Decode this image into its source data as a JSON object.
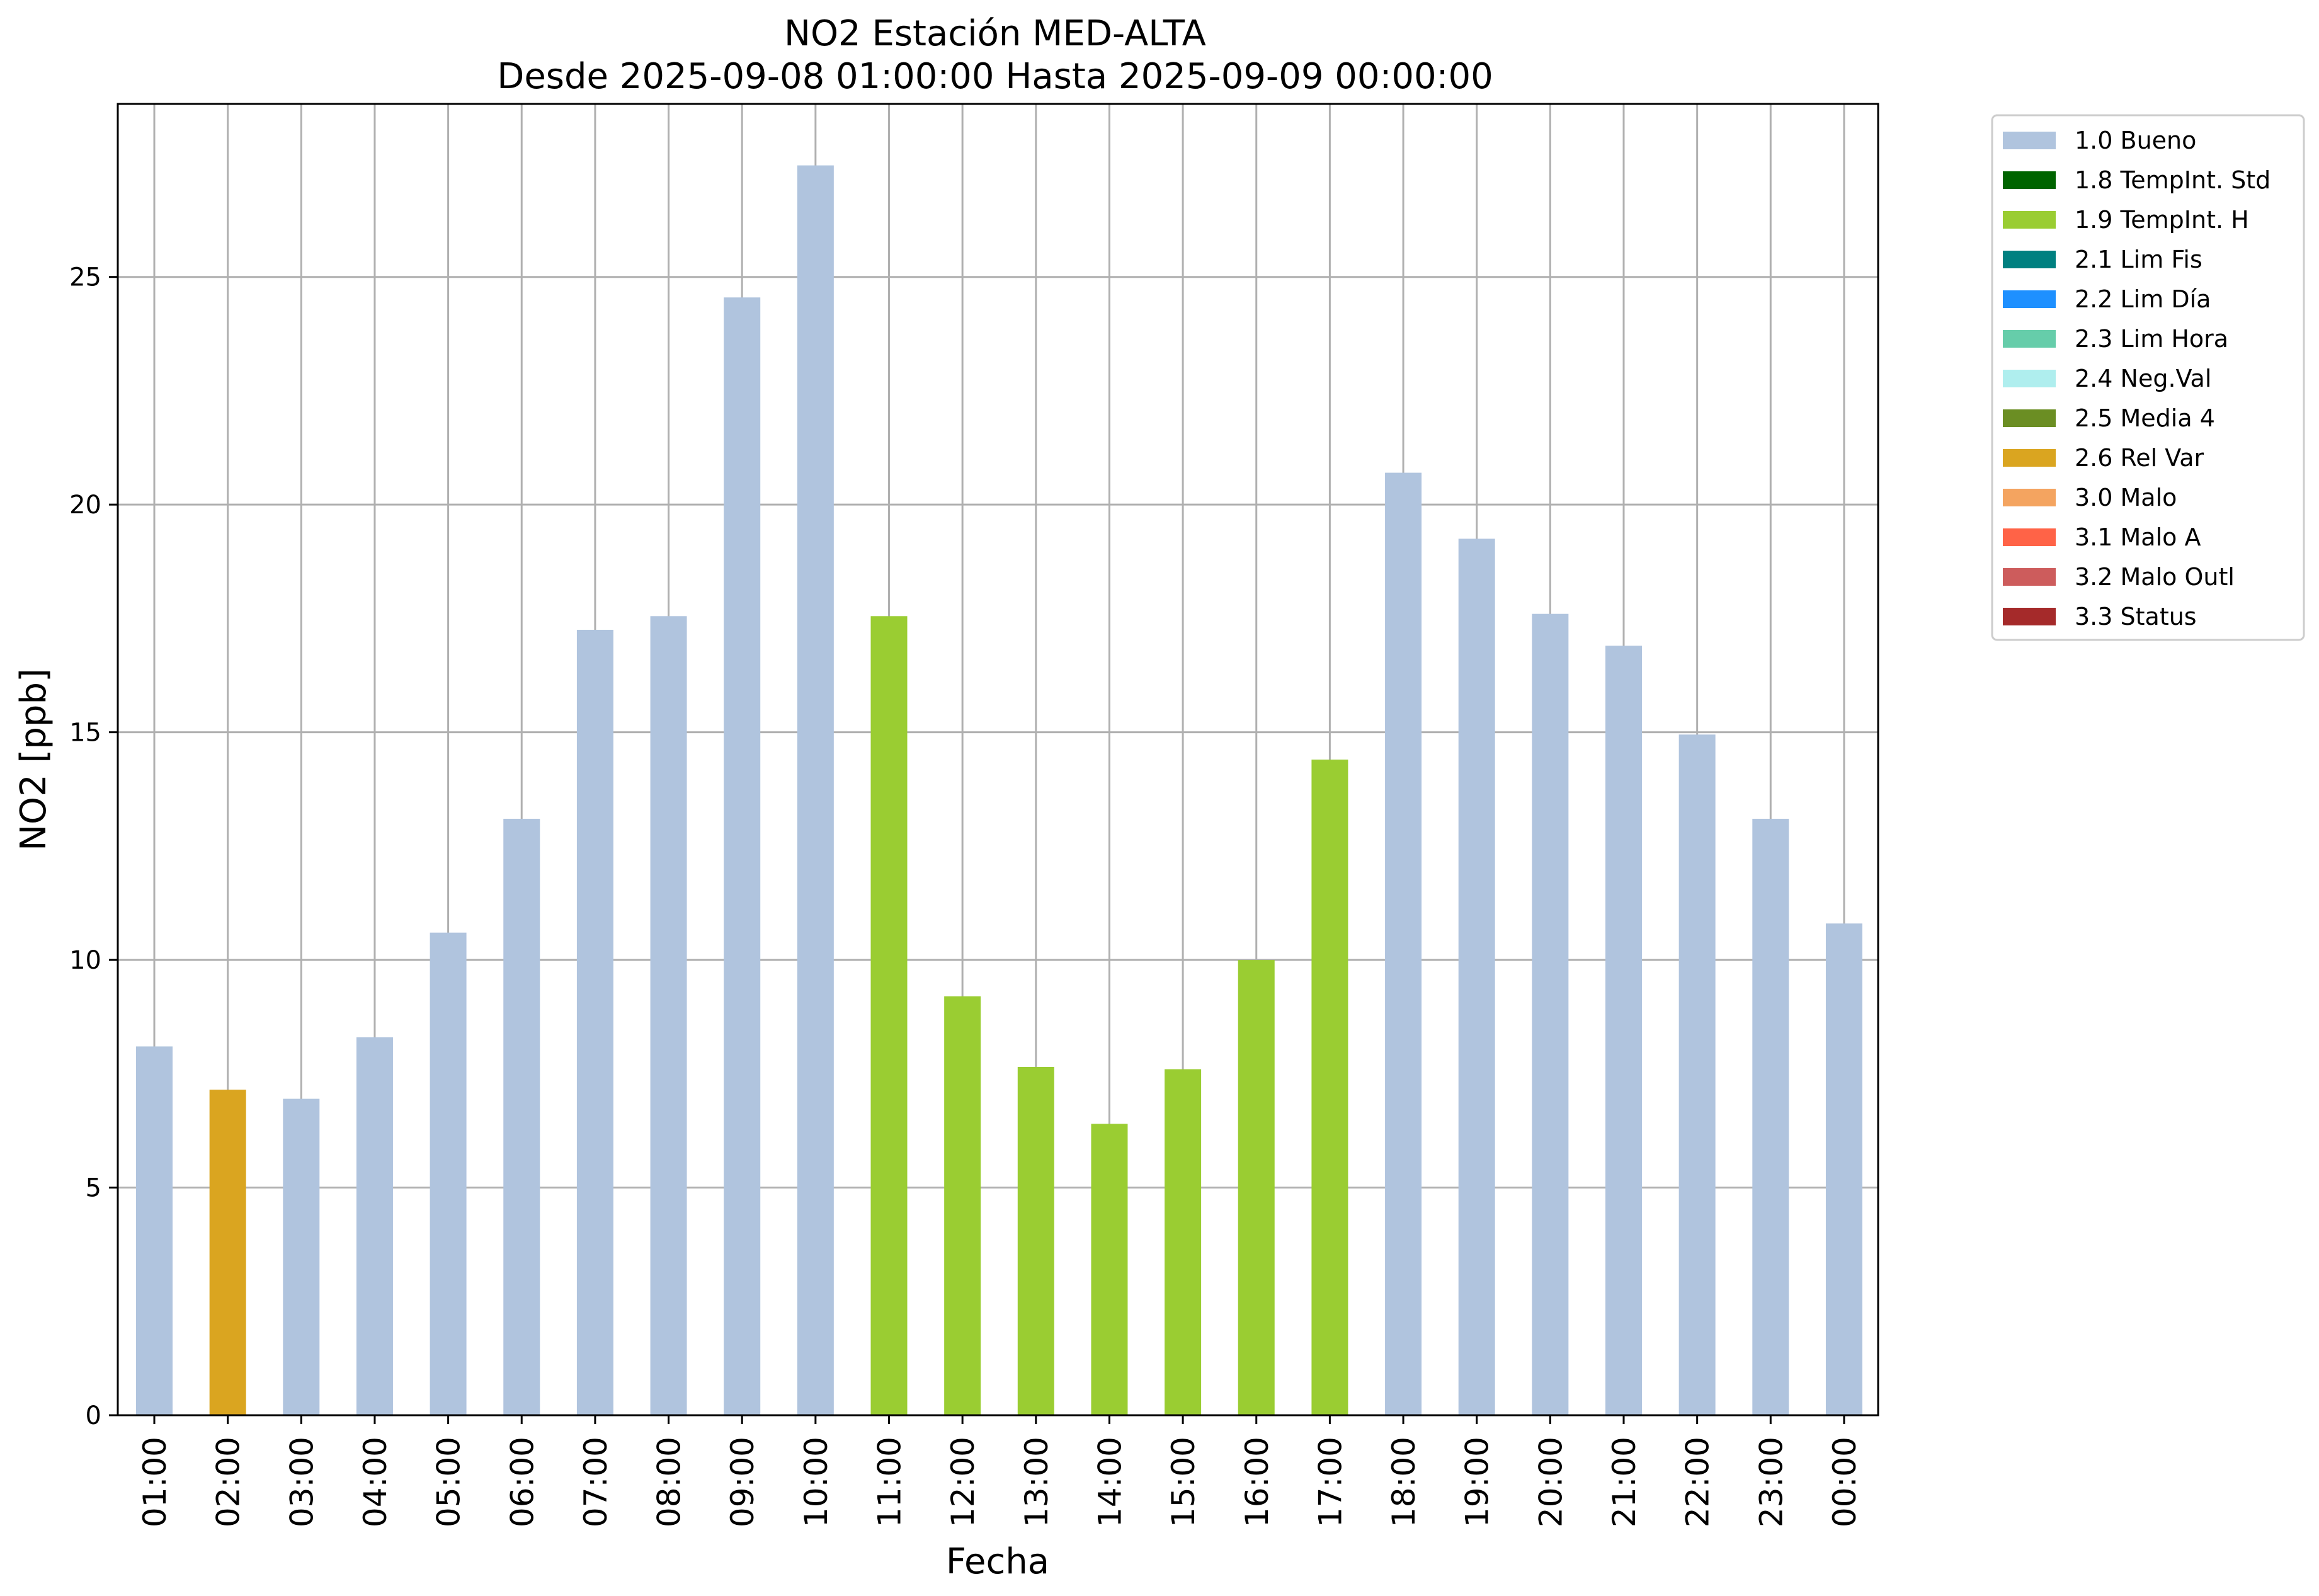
{
  "chart_data": {
    "type": "bar",
    "title": "NO2 Estación MED-ALTA",
    "subtitle": "Desde 2025-09-08 01:00:00 Hasta 2025-09-09 00:00:00",
    "xlabel": "Fecha",
    "ylabel": "NO2 [ppb]",
    "ylim": [
      0,
      28.8
    ],
    "yticks": [
      0,
      5,
      10,
      15,
      20,
      25
    ],
    "grid": true,
    "legend_position": "outside-top-right",
    "categories": [
      "01:00",
      "02:00",
      "03:00",
      "04:00",
      "05:00",
      "06:00",
      "07:00",
      "08:00",
      "09:00",
      "10:00",
      "11:00",
      "12:00",
      "13:00",
      "14:00",
      "15:00",
      "16:00",
      "17:00",
      "18:00",
      "19:00",
      "20:00",
      "21:00",
      "22:00",
      "23:00",
      "00:00"
    ],
    "values": [
      8.1,
      7.15,
      6.95,
      8.3,
      10.6,
      13.1,
      17.25,
      17.55,
      24.55,
      27.45,
      17.55,
      9.2,
      7.65,
      6.4,
      7.6,
      10.0,
      14.4,
      20.7,
      19.25,
      17.6,
      16.9,
      14.95,
      13.1,
      10.8
    ],
    "flags": [
      "1.0",
      "2.6",
      "1.0",
      "1.0",
      "1.0",
      "1.0",
      "1.0",
      "1.0",
      "1.0",
      "1.0",
      "1.9",
      "1.9",
      "1.9",
      "1.9",
      "1.9",
      "1.9",
      "1.9",
      "1.0",
      "1.0",
      "1.0",
      "1.0",
      "1.0",
      "1.0",
      "1.0"
    ],
    "legend": [
      {
        "code": "1.0",
        "label": "1.0 Bueno",
        "color": "#b0c4de"
      },
      {
        "code": "1.8",
        "label": "1.8 TempInt. Std",
        "color": "#006400"
      },
      {
        "code": "1.9",
        "label": "1.9 TempInt. H",
        "color": "#9acd32"
      },
      {
        "code": "2.1",
        "label": "2.1 Lim Fis",
        "color": "#008080"
      },
      {
        "code": "2.2",
        "label": "2.2 Lim Día",
        "color": "#1e90ff"
      },
      {
        "code": "2.3",
        "label": "2.3 Lim Hora",
        "color": "#66cdaa"
      },
      {
        "code": "2.4",
        "label": "2.4 Neg.Val",
        "color": "#afeeee"
      },
      {
        "code": "2.5",
        "label": "2.5 Media 4",
        "color": "#6b8e23"
      },
      {
        "code": "2.6",
        "label": "2.6 Rel Var",
        "color": "#daa520"
      },
      {
        "code": "3.0",
        "label": "3.0 Malo",
        "color": "#f4a460"
      },
      {
        "code": "3.1",
        "label": "3.1 Malo A",
        "color": "#ff6347"
      },
      {
        "code": "3.2",
        "label": "3.2 Malo Outl",
        "color": "#cd5c5c"
      },
      {
        "code": "3.3",
        "label": "3.3 Status",
        "color": "#a52a2a"
      }
    ]
  }
}
